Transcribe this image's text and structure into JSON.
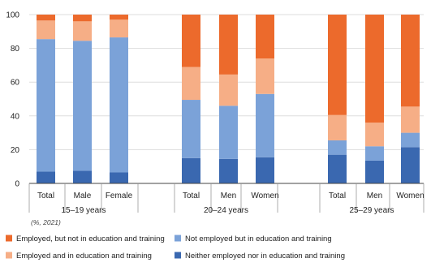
{
  "chart_data": {
    "type": "bar",
    "stacked": true,
    "note": "(%, 2021)",
    "ylim": [
      0,
      100
    ],
    "yticks": [
      "0",
      "20",
      "40",
      "60",
      "80",
      "100"
    ],
    "groups": [
      {
        "label": "15–19 years",
        "categories": [
          "Total",
          "Male",
          "Female"
        ]
      },
      {
        "label": "20–24 years",
        "categories": [
          "Total",
          "Men",
          "Women"
        ]
      },
      {
        "label": "25–29 years",
        "categories": [
          "Total",
          "Men",
          "Women"
        ]
      }
    ],
    "categories": [
      "Total",
      "Male",
      "Female",
      "Total",
      "Men",
      "Women",
      "Total",
      "Men",
      "Women"
    ],
    "series": [
      {
        "name": "Neither employed nor in education and training",
        "color": "#3a68b0",
        "values": [
          7,
          7.5,
          6.5,
          15,
          14.5,
          15.5,
          17,
          13.5,
          21.5
        ]
      },
      {
        "name": "Not employed but in education and training",
        "color": "#7ba2d8",
        "values": [
          78.5,
          77,
          80,
          34.5,
          31.5,
          37.5,
          8.5,
          8.5,
          8.5
        ]
      },
      {
        "name": "Employed and in education and training",
        "color": "#f6ae86",
        "values": [
          11,
          11.5,
          10.5,
          19.5,
          18.5,
          21,
          15,
          14,
          15.5
        ]
      },
      {
        "name": "Employed, but not in education and training",
        "color": "#ec6a2c",
        "values": [
          3.5,
          4,
          3,
          31,
          35.5,
          26,
          59.5,
          64,
          54.5
        ]
      }
    ],
    "legend": [
      {
        "name": "Employed, but not in education and training",
        "color": "#ec6a2c"
      },
      {
        "name": "Not employed but in education and training",
        "color": "#7ba2d8"
      },
      {
        "name": "Employed and in education and training",
        "color": "#f6ae86"
      },
      {
        "name": "Neither employed nor in education and training",
        "color": "#3a68b0"
      }
    ],
    "legend_position": "bottom"
  }
}
